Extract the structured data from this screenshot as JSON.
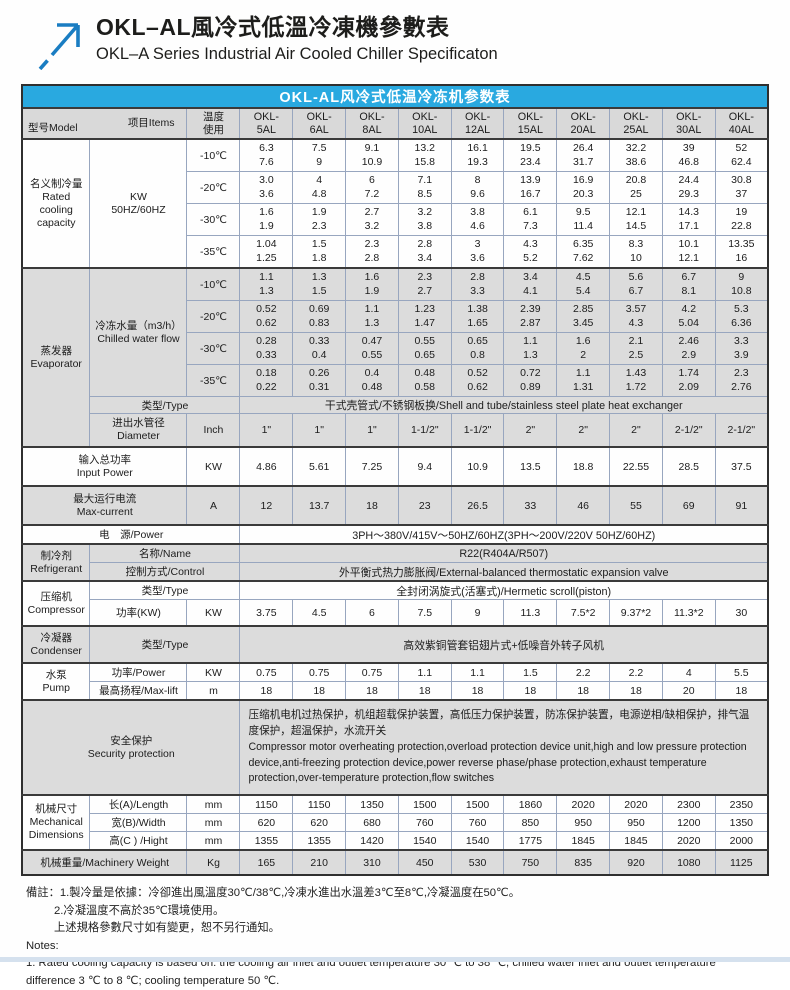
{
  "header": {
    "title_zh": "OKL–AL風冷式低溫冷凍機參數表",
    "title_en": "OKL–A Series Industrial Air Cooled Chiller Specificaton",
    "logo_icon": "arrow-up-right-icon"
  },
  "colors": {
    "banner_blue": "#29a9e0",
    "logo_blue": "#1a7dc2",
    "section_gray": "#dcdcdc",
    "grid_line": "#98a6bf",
    "dark_line": "#2f2f2f"
  },
  "table": {
    "banner": "OKL-AL风冷式低温冷冻机参数表",
    "corner_model": "型号Model",
    "corner_items": "项目Items",
    "temp_header": "温度\n使用",
    "models": [
      [
        "OKL-",
        "5AL"
      ],
      [
        "OKL-",
        "6AL"
      ],
      [
        "OKL-",
        "8AL"
      ],
      [
        "OKL-",
        "10AL"
      ],
      [
        "OKL-",
        "12AL"
      ],
      [
        "OKL-",
        "15AL"
      ],
      [
        "OKL-",
        "20AL"
      ],
      [
        "OKL-",
        "25AL"
      ],
      [
        "OKL-",
        "30AL"
      ],
      [
        "OKL-",
        "40AL"
      ]
    ],
    "rated": {
      "label": "名义制冷量\nRated\ncooling\ncapacity",
      "unit": "KW\n50HZ/60HZ",
      "rows": [
        {
          "temp": "-10℃",
          "values": [
            [
              "6.3",
              "7.6"
            ],
            [
              "7.5",
              "9"
            ],
            [
              "9.1",
              "10.9"
            ],
            [
              "13.2",
              "15.8"
            ],
            [
              "16.1",
              "19.3"
            ],
            [
              "19.5",
              "23.4"
            ],
            [
              "26.4",
              "31.7"
            ],
            [
              "32.2",
              "38.6"
            ],
            [
              "39",
              "46.8"
            ],
            [
              "52",
              "62.4"
            ]
          ]
        },
        {
          "temp": "-20℃",
          "values": [
            [
              "3.0",
              "3.6"
            ],
            [
              "4",
              "4.8"
            ],
            [
              "6",
              "7.2"
            ],
            [
              "7.1",
              "8.5"
            ],
            [
              "8",
              "9.6"
            ],
            [
              "13.9",
              "16.7"
            ],
            [
              "16.9",
              "20.3"
            ],
            [
              "20.8",
              "25"
            ],
            [
              "24.4",
              "29.3"
            ],
            [
              "30.8",
              "37"
            ]
          ]
        },
        {
          "temp": "-30℃",
          "values": [
            [
              "1.6",
              "1.9"
            ],
            [
              "1.9",
              "2.3"
            ],
            [
              "2.7",
              "3.2"
            ],
            [
              "3.2",
              "3.8"
            ],
            [
              "3.8",
              "4.6"
            ],
            [
              "6.1",
              "7.3"
            ],
            [
              "9.5",
              "11.4"
            ],
            [
              "12.1",
              "14.5"
            ],
            [
              "14.3",
              "17.1"
            ],
            [
              "19",
              "22.8"
            ]
          ]
        },
        {
          "temp": "-35℃",
          "values": [
            [
              "1.04",
              "1.25"
            ],
            [
              "1.5",
              "1.8"
            ],
            [
              "2.3",
              "2.8"
            ],
            [
              "2.8",
              "3.4"
            ],
            [
              "3",
              "3.6"
            ],
            [
              "4.3",
              "5.2"
            ],
            [
              "6.35",
              "7.62"
            ],
            [
              "8.3",
              "10"
            ],
            [
              "10.1",
              "12.1"
            ],
            [
              "13.35",
              "16"
            ]
          ]
        }
      ]
    },
    "evaporator": {
      "label": "蒸发器\nEvaporator",
      "flow_label": "冷冻水量（m3/h）\nChilled water flow",
      "rows": [
        {
          "temp": "-10℃",
          "values": [
            [
              "1.1",
              "1.3"
            ],
            [
              "1.3",
              "1.5"
            ],
            [
              "1.6",
              "1.9"
            ],
            [
              "2.3",
              "2.7"
            ],
            [
              "2.8",
              "3.3"
            ],
            [
              "3.4",
              "4.1"
            ],
            [
              "4.5",
              "5.4"
            ],
            [
              "5.6",
              "6.7"
            ],
            [
              "6.7",
              "8.1"
            ],
            [
              "9",
              "10.8"
            ]
          ]
        },
        {
          "temp": "-20℃",
          "values": [
            [
              "0.52",
              "0.62"
            ],
            [
              "0.69",
              "0.83"
            ],
            [
              "1.1",
              "1.3"
            ],
            [
              "1.23",
              "1.47"
            ],
            [
              "1.38",
              "1.65"
            ],
            [
              "2.39",
              "2.87"
            ],
            [
              "2.85",
              "3.45"
            ],
            [
              "3.57",
              "4.3"
            ],
            [
              "4.2",
              "5.04"
            ],
            [
              "5.3",
              "6.36"
            ]
          ]
        },
        {
          "temp": "-30℃",
          "values": [
            [
              "0.28",
              "0.33"
            ],
            [
              "0.33",
              "0.4"
            ],
            [
              "0.47",
              "0.55"
            ],
            [
              "0.55",
              "0.65"
            ],
            [
              "0.65",
              "0.8"
            ],
            [
              "1.1",
              "1.3"
            ],
            [
              "1.6",
              "2"
            ],
            [
              "2.1",
              "2.5"
            ],
            [
              "2.46",
              "2.9"
            ],
            [
              "3.3",
              "3.9"
            ]
          ]
        },
        {
          "temp": "-35℃",
          "values": [
            [
              "0.18",
              "0.22"
            ],
            [
              "0.26",
              "0.31"
            ],
            [
              "0.4",
              "0.48"
            ],
            [
              "0.48",
              "0.58"
            ],
            [
              "0.52",
              "0.62"
            ],
            [
              "0.72",
              "0.89"
            ],
            [
              "1.1",
              "1.31"
            ],
            [
              "1.43",
              "1.72"
            ],
            [
              "1.74",
              "2.09"
            ],
            [
              "2.3",
              "2.76"
            ]
          ]
        }
      ],
      "type_label": "类型/Type",
      "type_value": "干式壳管式/不锈钢板换/Shell and tube/stainless steel plate heat exchanger",
      "diameter_label": "进出水管径\nDiameter",
      "diameter_unit": "Inch",
      "diameters": [
        "1\"",
        "1\"",
        "1\"",
        "1-1/2\"",
        "1-1/2\"",
        "2\"",
        "2\"",
        "2\"",
        "2-1/2\"",
        "2-1/2\""
      ]
    },
    "input_power": {
      "label": "输入总功率\nInput Power",
      "unit": "KW",
      "values": [
        "4.86",
        "5.61",
        "7.25",
        "9.4",
        "10.9",
        "13.5",
        "18.8",
        "22.55",
        "28.5",
        "37.5"
      ]
    },
    "max_current": {
      "label": "最大运行电流\nMax-current",
      "unit": "A",
      "values": [
        "12",
        "13.7",
        "18",
        "23",
        "26.5",
        "33",
        "46",
        "55",
        "69",
        "91"
      ]
    },
    "power_supply": {
      "label": "电　源/Power",
      "value": "3PH～380V/415V～50HZ/60HZ(3PH～200V/220V  50HZ/60HZ)"
    },
    "refrigerant": {
      "label": "制冷剂\nRefrigerant",
      "name_label": "名称/Name",
      "name_value": "R22(R404A/R507)",
      "control_label": "控制方式/Control",
      "control_value": "外平衡式热力膨胀阀/External-balanced thermostatic expansion valve"
    },
    "compressor": {
      "label": "压缩机\nCompressor",
      "type_label": "类型/Type",
      "type_value": "全封闭涡旋式(活塞式)/Hermetic scroll(piston)",
      "power_label": "功率(KW)",
      "unit": "KW",
      "values": [
        "3.75",
        "4.5",
        "6",
        "7.5",
        "9",
        "11.3",
        "7.5*2",
        "9.37*2",
        "11.3*2",
        "30"
      ]
    },
    "condenser": {
      "label": "冷凝器\nCondenser",
      "type_label": "类型/Type",
      "type_value": "高效紫铜管套铝翅片式+低噪音外转子风机"
    },
    "pump": {
      "label": "水泵\nPump",
      "power_label": "功率/Power",
      "power_unit": "KW",
      "power_values": [
        "0.75",
        "0.75",
        "0.75",
        "1.1",
        "1.1",
        "1.5",
        "2.2",
        "2.2",
        "4",
        "5.5"
      ],
      "lift_label": "最高扬程/Max-lift",
      "lift_unit": "m",
      "lift_values": [
        "18",
        "18",
        "18",
        "18",
        "18",
        "18",
        "18",
        "18",
        "20",
        "18"
      ]
    },
    "security": {
      "label": "安全保护\nSecurity protection",
      "text_zh": "压缩机电机过热保护，机组超载保护装置，高低压力保护装置，防冻保护装置，电源逆相/缺相保护，排气温度保护，超温保护，水流开关",
      "text_en": "Compressor motor overheating protection,overload protection device unit,high and low pressure protection device,anti-freezing protection device,power reverse phase/phase protection,exhaust temperature protection,over-temperature protection,flow switches"
    },
    "mechanical": {
      "label": "机械尺寸\nMechanical\nDimensions",
      "rows": [
        {
          "label": "长(A)/Length",
          "unit": "mm",
          "values": [
            "1150",
            "1150",
            "1350",
            "1500",
            "1500",
            "1860",
            "2020",
            "2020",
            "2300",
            "2350"
          ]
        },
        {
          "label": "宽(B)/Width",
          "unit": "mm",
          "values": [
            "620",
            "620",
            "680",
            "760",
            "760",
            "850",
            "950",
            "950",
            "1200",
            "1350"
          ]
        },
        {
          "label": "高(C ) /Hight",
          "unit": "mm",
          "values": [
            "1355",
            "1355",
            "1420",
            "1540",
            "1540",
            "1775",
            "1845",
            "1845",
            "2020",
            "2000"
          ]
        }
      ]
    },
    "weight": {
      "label": "机械重量/Machinery Weight",
      "unit": "Kg",
      "values": [
        "165",
        "210",
        "310",
        "450",
        "530",
        "750",
        "835",
        "920",
        "1080",
        "1125"
      ]
    }
  },
  "notes": {
    "zh1": "備註：1.製冷量是依據：冷卻進出風溫度30℃/38℃,冷凍水進出水溫差3℃至8℃,冷凝溫度在50℃。",
    "zh2": "2.冷凝溫度不高於35℃環境使用。",
    "zh3": "上述規格參數尺寸如有變更，恕不另行通知。",
    "en_title": "Notes:",
    "en1": "1. Rated cooling capacity is based on: the cooling air inlet and outlet temperature 30 ℃ to 38 ℃, chilled water inlet and outlet temperature difference 3 ℃ to 8 ℃; cooling temperature 50 ℃."
  }
}
